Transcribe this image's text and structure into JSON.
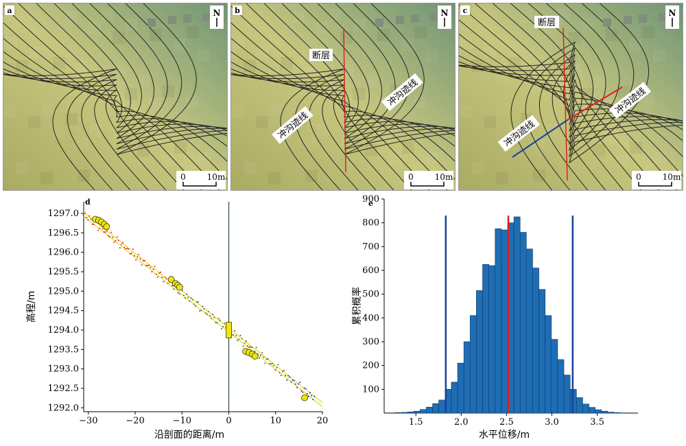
{
  "panels": {
    "a": {
      "letter": "a",
      "north": "N",
      "scale_zero": "0",
      "scale_end": "10m"
    },
    "b": {
      "letter": "b",
      "north": "N",
      "scale_zero": "0",
      "scale_end": "10m",
      "fault_label": "断层",
      "gully_left": "冲沟迹线",
      "gully_right": "冲沟迹线"
    },
    "c": {
      "letter": "c",
      "north": "N",
      "scale_zero": "0",
      "scale_end": "10m",
      "fault_label": "断层",
      "gully_left": "冲沟迹线",
      "gully_right": "冲沟迹线"
    }
  },
  "colors": {
    "terrain_low": "#a9ab63",
    "terrain_mid": "#c8c77f",
    "terrain_high": "#6f9576",
    "fault": "#e02020",
    "trace_blue": "#1a3f9c",
    "trace_red": "#e02020",
    "bar": "#1f6db4",
    "scatter_yellow": "#f2e600",
    "line_yellow": "#e5e04a"
  },
  "chart_data": [
    {
      "panel": "d",
      "type": "scatter",
      "xlabel": "沿剖面的距离/m",
      "ylabel": "高程/m",
      "xlim": [
        -31,
        20
      ],
      "ylim": [
        1291.9,
        1297.3
      ],
      "xticks": [
        "−30",
        "−20",
        "−10",
        "0",
        "10",
        "20"
      ],
      "xtick_values": [
        -30,
        -20,
        -10,
        0,
        10,
        20
      ],
      "yticks": [
        "1292.0",
        "1292.5",
        "1293.0",
        "1293.5",
        "1294.0",
        "1294.5",
        "1295.0",
        "1295.5",
        "1296.0",
        "1296.5",
        "1297.0"
      ],
      "ytick_values": [
        1292.0,
        1292.5,
        1293.0,
        1293.5,
        1294.0,
        1294.5,
        1295.0,
        1295.5,
        1296.0,
        1296.5,
        1297.0
      ],
      "series": [
        {
          "values_x": [
            -28.5,
            -27.8,
            -27.2,
            -26.6,
            -26.1,
            -12.3,
            -11.4,
            -10.9,
            -10.5
          ],
          "values_y": [
            1296.85,
            1296.82,
            1296.78,
            1296.72,
            1296.66,
            1295.3,
            1295.2,
            1295.15,
            1295.1
          ]
        },
        {
          "values_x": [
            3.6,
            4.3,
            5.0,
            5.6,
            16.2
          ],
          "values_y": [
            1293.45,
            1293.42,
            1293.38,
            1293.33,
            1292.26
          ]
        }
      ],
      "fault_x": 0,
      "fault_box_y": [
        1293.8,
        1294.2
      ]
    },
    {
      "panel": "e",
      "type": "bar",
      "xlabel": "水平位移/m",
      "ylabel": "累积概率",
      "xlim": [
        1.15,
        3.95
      ],
      "ylim": [
        0,
        900
      ],
      "xticks": [
        "1.5",
        "2.0",
        "2.5",
        "3.0",
        "3.5"
      ],
      "xtick_values": [
        1.5,
        2.0,
        2.5,
        3.0,
        3.5
      ],
      "yticks": [
        "100",
        "200",
        "300",
        "400",
        "500",
        "600",
        "700",
        "800",
        "900"
      ],
      "ytick_values": [
        100,
        200,
        300,
        400,
        500,
        600,
        700,
        800,
        900
      ],
      "bin_width": 0.069,
      "bin_starts": [
        1.27,
        1.339,
        1.408,
        1.477,
        1.546,
        1.615,
        1.684,
        1.753,
        1.822,
        1.891,
        1.96,
        2.029,
        2.098,
        2.167,
        2.236,
        2.305,
        2.374,
        2.443,
        2.512,
        2.581,
        2.65,
        2.719,
        2.788,
        2.857,
        2.926,
        2.995,
        3.064,
        3.133,
        3.202,
        3.271,
        3.34,
        3.409,
        3.478,
        3.547,
        3.616,
        3.685,
        3.754
      ],
      "values": [
        2,
        3,
        5,
        8,
        15,
        25,
        40,
        55,
        100,
        130,
        210,
        300,
        410,
        515,
        625,
        620,
        775,
        770,
        800,
        825,
        760,
        690,
        610,
        520,
        410,
        310,
        225,
        160,
        100,
        65,
        38,
        24,
        14,
        8,
        4,
        2,
        1
      ],
      "vlines_blue": [
        1.83,
        3.23
      ],
      "vline_red": 2.52
    }
  ]
}
